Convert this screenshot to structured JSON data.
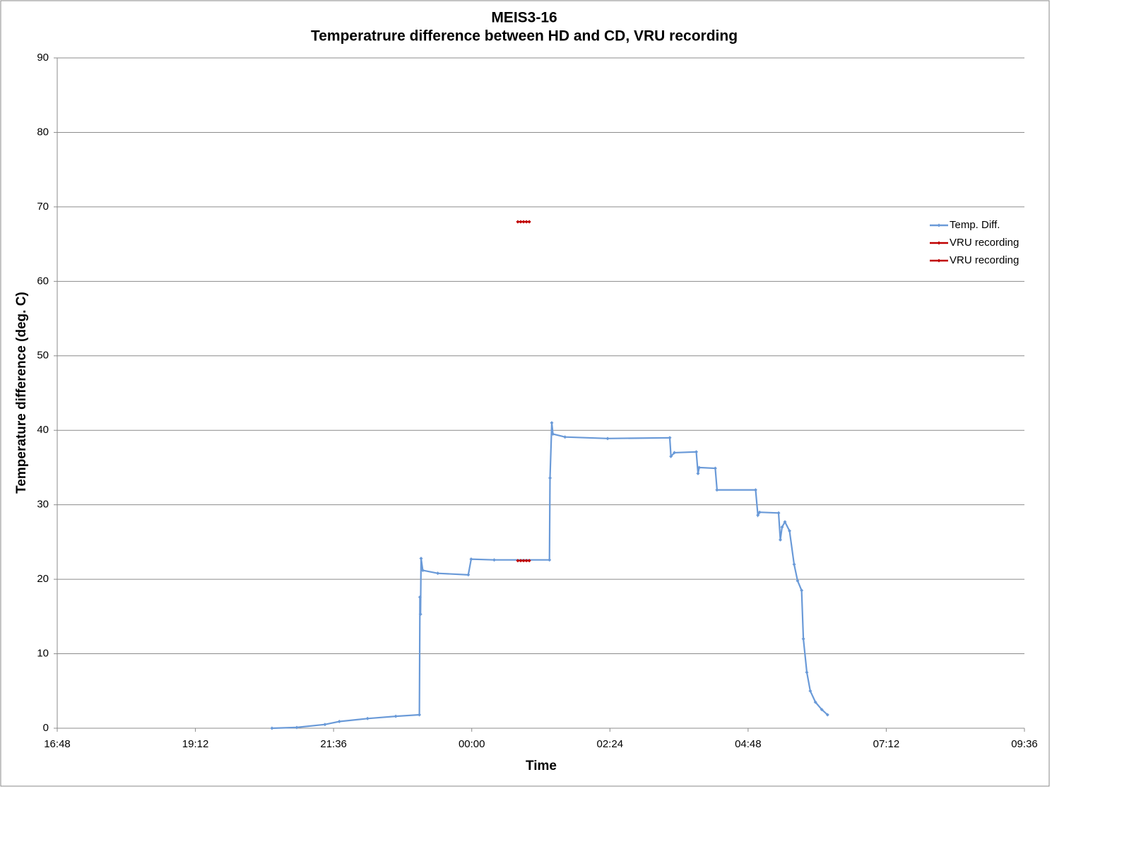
{
  "chart_data": {
    "type": "line",
    "title": "MEIS3-16",
    "subtitle": "Temperatrure difference between HD and CD, VRU recording",
    "x_label": "Time",
    "y_label": "Temperature difference (deg. C)",
    "xlim": [
      16.8,
      33.6
    ],
    "xticks": [
      {
        "value": 16.8,
        "label": "16:48"
      },
      {
        "value": 19.2,
        "label": "19:12"
      },
      {
        "value": 21.6,
        "label": "21:36"
      },
      {
        "value": 24,
        "label": "00:00"
      },
      {
        "value": 26.4,
        "label": "02:24"
      },
      {
        "value": 28.8,
        "label": "04:48"
      },
      {
        "value": 31.2,
        "label": "07:12"
      },
      {
        "value": 33.6,
        "label": "09:36"
      }
    ],
    "ylim": [
      0,
      90
    ],
    "yticks": [
      0,
      10,
      20,
      30,
      40,
      50,
      60,
      70,
      80,
      90
    ],
    "grid": true,
    "legend": "right",
    "series": [
      {
        "name": "Temp. Diff.",
        "color": "#6a9ad8",
        "x": [
          20.53,
          20.96,
          21.45,
          21.7,
          22.19,
          22.68,
          23.09,
          23.1,
          23.11,
          23.12,
          23.15,
          23.41,
          23.94,
          23.99,
          24.39,
          25.35,
          25.36,
          25.39,
          25.41,
          25.62,
          26.36,
          27.44,
          27.46,
          27.52,
          27.9,
          27.93,
          27.95,
          28.23,
          28.26,
          28.93,
          28.97,
          29.0,
          29.33,
          29.36,
          29.39,
          29.44,
          29.52,
          29.6,
          29.66,
          29.73,
          29.76,
          29.82,
          29.88,
          29.97,
          30.08,
          30.18
        ],
        "values": [
          0.0,
          0.1,
          0.5,
          0.9,
          1.3,
          1.6,
          1.8,
          17.6,
          15.3,
          22.8,
          21.2,
          20.8,
          20.6,
          22.7,
          22.6,
          22.6,
          33.6,
          41.0,
          39.5,
          39.1,
          38.9,
          39.0,
          36.5,
          37.0,
          37.1,
          34.2,
          35.0,
          34.9,
          32.0,
          32.0,
          28.6,
          29.0,
          28.9,
          25.3,
          27.0,
          27.7,
          26.5,
          22.0,
          19.8,
          18.5,
          12.0,
          7.5,
          5.0,
          3.5,
          2.5,
          1.8
        ]
      },
      {
        "name": "VRU recording",
        "color": "#c00000",
        "x": [
          24.8,
          24.85,
          24.9,
          24.95,
          25.0
        ],
        "values": [
          68,
          68,
          68,
          68,
          68
        ]
      },
      {
        "name": "VRU recording",
        "color": "#c00000",
        "x": [
          24.8,
          24.85,
          24.9,
          24.95,
          25.0
        ],
        "values": [
          22.5,
          22.5,
          22.5,
          22.5,
          22.5
        ]
      }
    ]
  }
}
